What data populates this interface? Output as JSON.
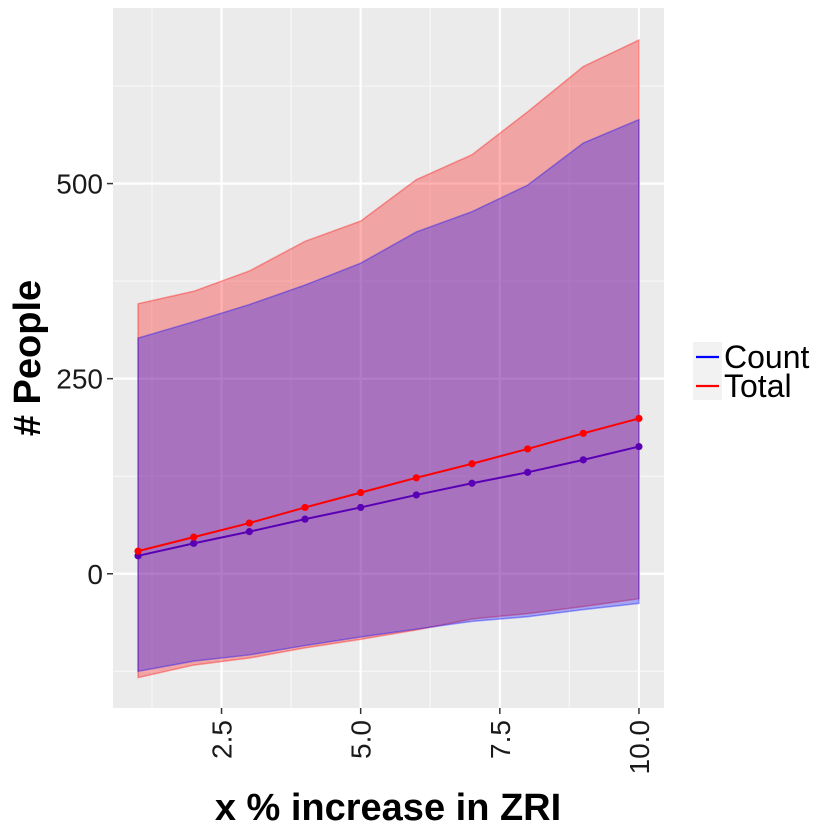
{
  "chart_data": {
    "type": "line",
    "xlabel": "x % increase in ZRI",
    "ylabel": "# People",
    "x": [
      1,
      2,
      3,
      4,
      5,
      6,
      7,
      8,
      9,
      10
    ],
    "xlim": [
      0.55,
      10.45
    ],
    "ylim": [
      -172,
      725
    ],
    "x_ticks": [
      2.5,
      5.0,
      7.5,
      10.0
    ],
    "x_tick_labels": [
      "2.5",
      "5.0",
      "7.5",
      "10.0"
    ],
    "y_ticks": [
      0,
      250,
      500
    ],
    "y_tick_labels": [
      "0",
      "250",
      "500"
    ],
    "grid": true,
    "legend_position": "right",
    "series": [
      {
        "name": "Count",
        "color": "#0000ff",
        "values": [
          23,
          39,
          54,
          70,
          85,
          101,
          116,
          130,
          146,
          163
        ],
        "lower": [
          -125,
          -112,
          -104,
          -92,
          -81,
          -71,
          -61,
          -55,
          -46,
          -38
        ],
        "upper": [
          302,
          323,
          345,
          370,
          398,
          438,
          464,
          498,
          552,
          582
        ]
      },
      {
        "name": "Total",
        "color": "#ff0000",
        "values": [
          29,
          47,
          65,
          85,
          104,
          123,
          141,
          160,
          180,
          199
        ],
        "lower": [
          -133,
          -117,
          -108,
          -95,
          -84,
          -72,
          -58,
          -51,
          -42,
          -32
        ],
        "upper": [
          346,
          362,
          388,
          426,
          452,
          505,
          537,
          592,
          650,
          684
        ]
      }
    ]
  }
}
